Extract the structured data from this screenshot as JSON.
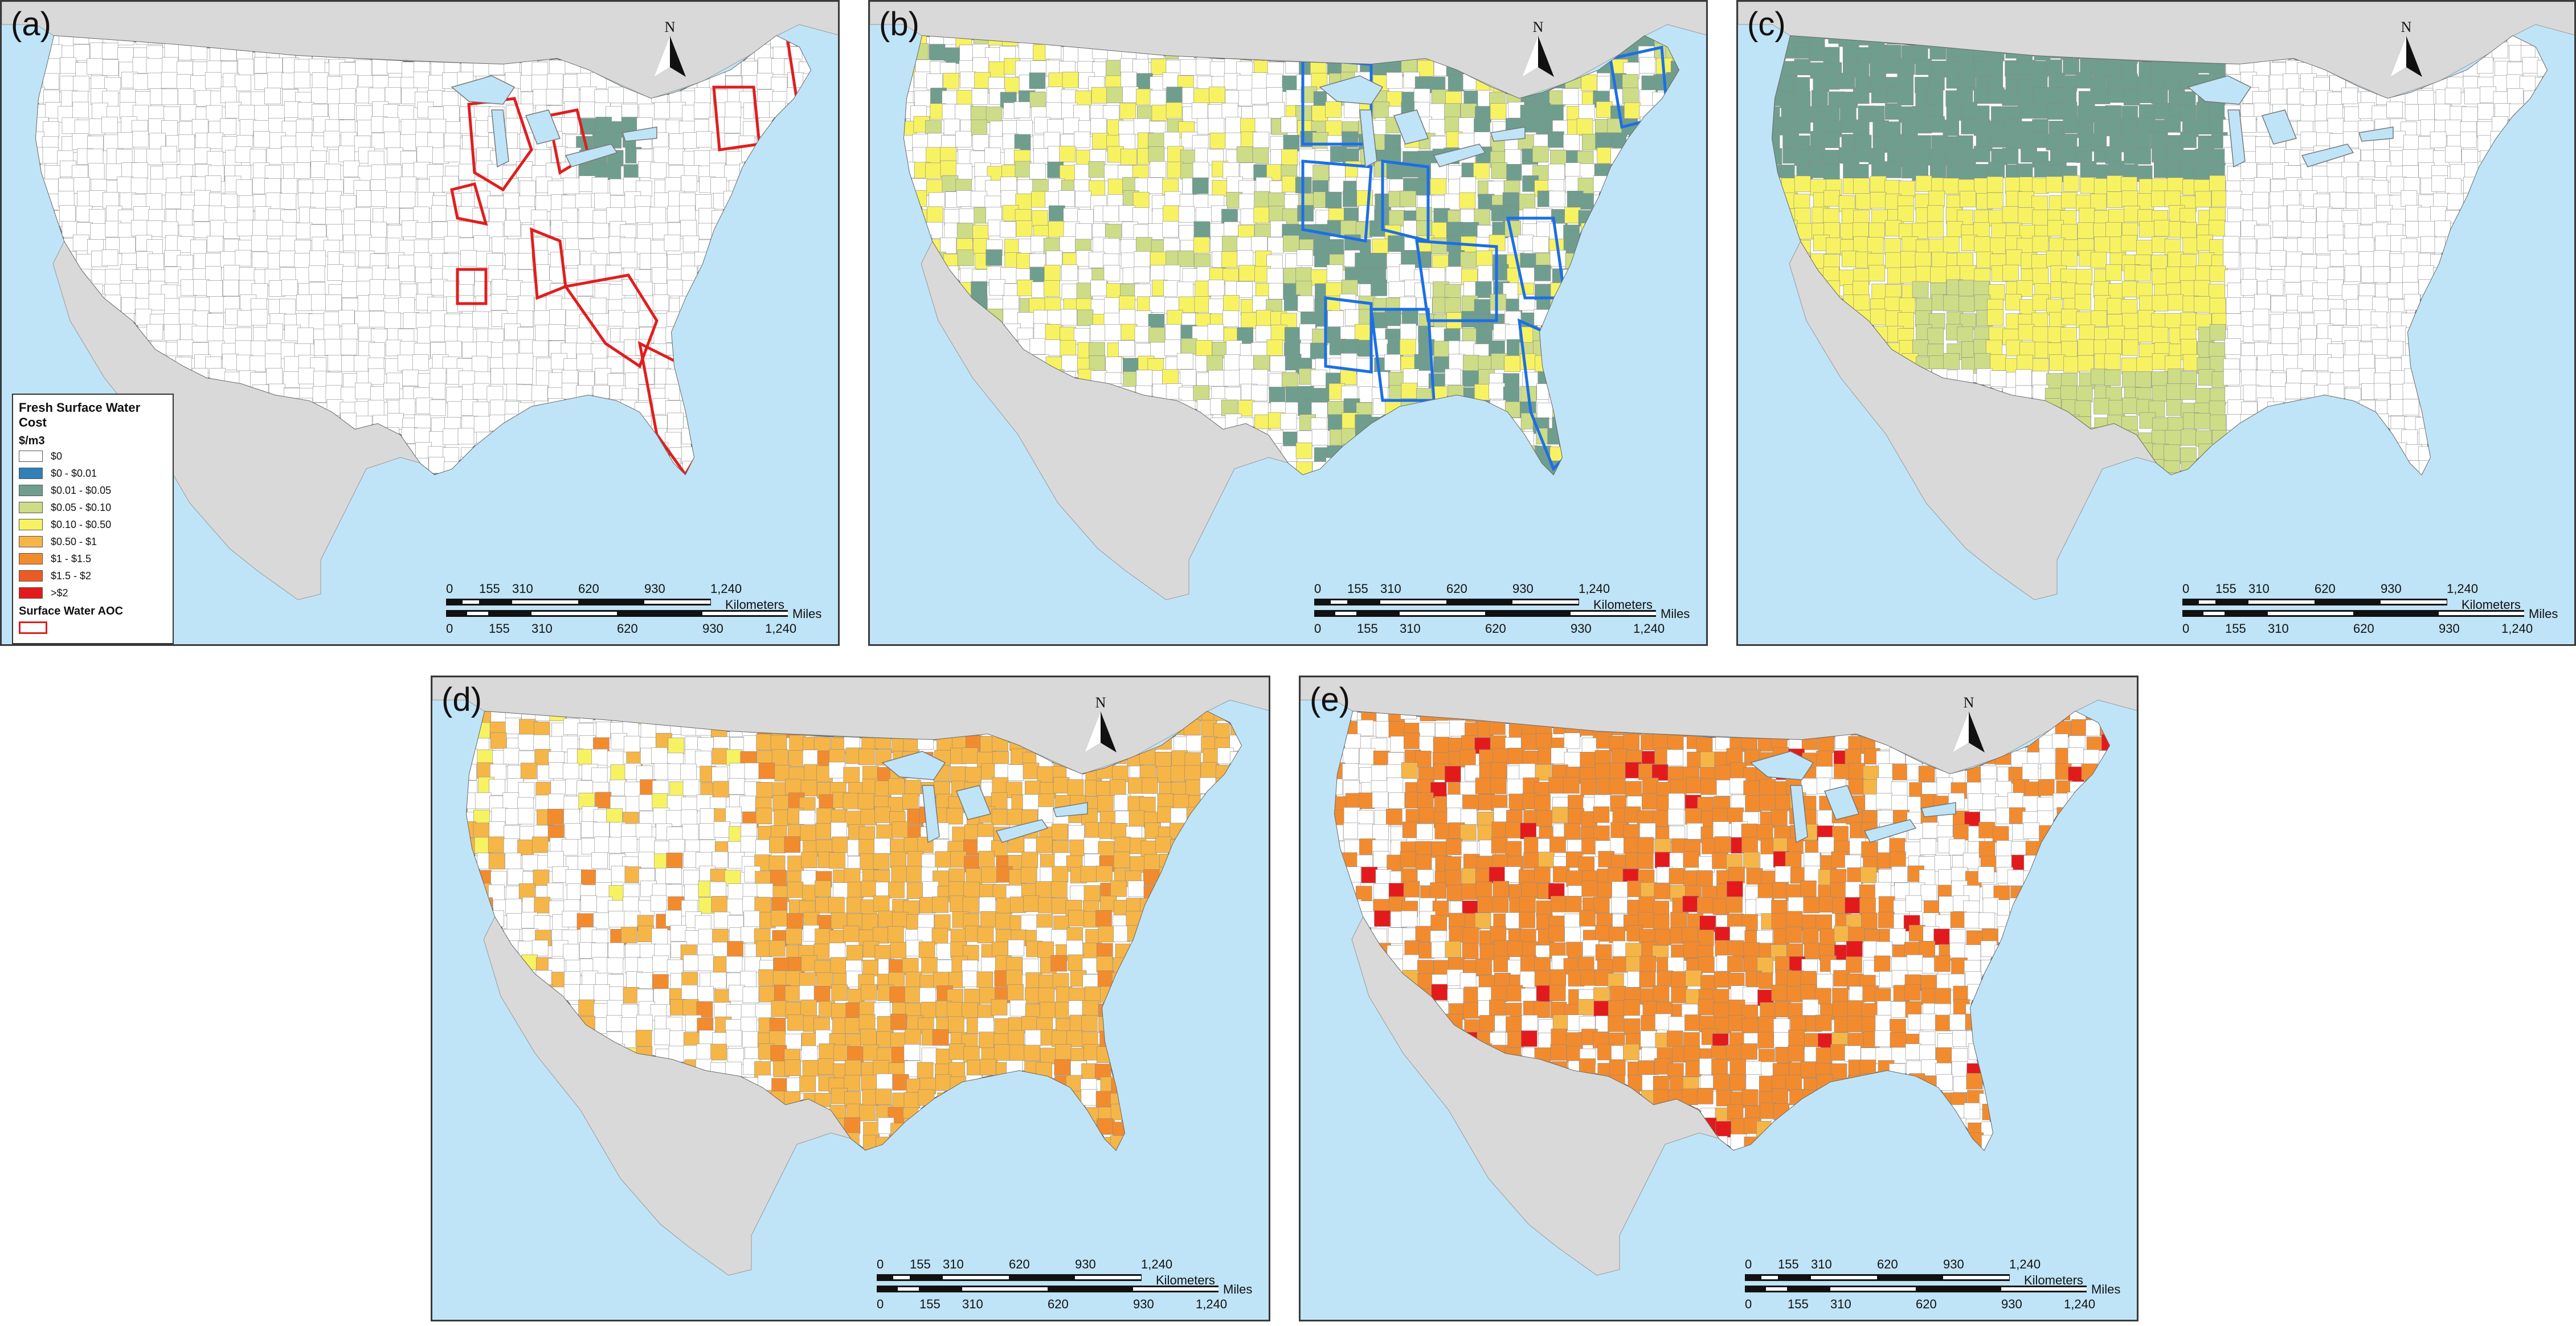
{
  "panels": [
    {
      "id": "a",
      "label": "(a)"
    },
    {
      "id": "b",
      "label": "(b)"
    },
    {
      "id": "c",
      "label": "(c)"
    },
    {
      "id": "d",
      "label": "(d)"
    },
    {
      "id": "e",
      "label": "(e)"
    }
  ],
  "north_label": "N",
  "scale_bar": {
    "km_ticks": [
      "0",
      "155",
      "310",
      "620",
      "930",
      "1,240"
    ],
    "km_unit": "Kilometers",
    "mi_ticks": [
      "0",
      "155",
      "310",
      "620",
      "930",
      "1,240"
    ],
    "mi_unit": "Miles"
  },
  "legend": {
    "title": "Fresh Surface Water Cost",
    "unit": "$/m3",
    "classes": [
      {
        "label": "$0",
        "color": "#ffffff"
      },
      {
        "label": "$0 - $0.01",
        "color": "#2f7fb8"
      },
      {
        "label": "$0.01 - $0.05",
        "color": "#6f9e8e"
      },
      {
        "label": "$0.05 - $0.10",
        "color": "#cddc86"
      },
      {
        "label": "$0.10 - $0.50",
        "color": "#f7f262"
      },
      {
        "label": "$0.50 - $1",
        "color": "#f6b547"
      },
      {
        "label": "$1 - $1.5",
        "color": "#f28b2e"
      },
      {
        "label": "$1.5 - $2",
        "color": "#ee5a24"
      },
      {
        "label": ">$2",
        "color": "#e31a1c"
      }
    ],
    "aoc_label": "Surface Water AOC",
    "aoc_color": "#e01e1e"
  },
  "colors": {
    "ocean": "#bfe4f7",
    "land_other": "#d9d9d9",
    "us_base": "#ffffff",
    "aoc_blue": "#1c6fe6"
  }
}
